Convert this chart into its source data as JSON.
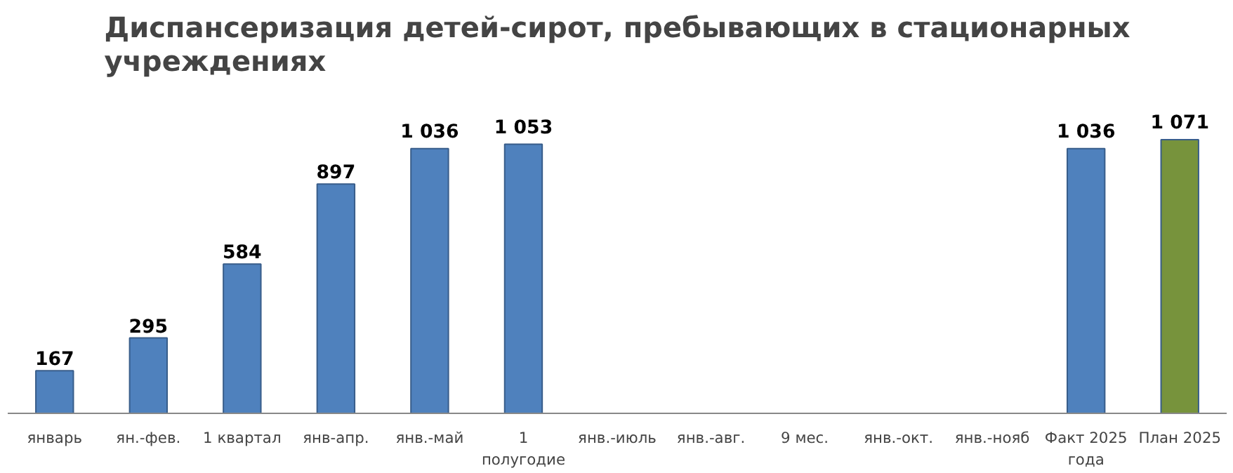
{
  "chart_data": {
    "type": "bar",
    "title": "Диспансеризация детей-сирот, пребывающих в стационарных учреждениях",
    "categories": [
      "январь",
      "ян.-фев.",
      "1 квартал",
      "янв-апр.",
      "янв.-май",
      "1 полугодие",
      "янв.-июль",
      "янв.-авг.",
      "9 мес.",
      "янв.-окт.",
      "янв.-нояб",
      "Факт 2025 года",
      "План 2025"
    ],
    "values": [
      167,
      295,
      584,
      897,
      1036,
      1053,
      null,
      null,
      null,
      null,
      null,
      1036,
      1071
    ],
    "colors": [
      "#4f81bd",
      "#4f81bd",
      "#4f81bd",
      "#4f81bd",
      "#4f81bd",
      "#4f81bd",
      "#4f81bd",
      "#4f81bd",
      "#4f81bd",
      "#4f81bd",
      "#4f81bd",
      "#4f81bd",
      "#77933c"
    ],
    "value_labels": [
      "167",
      "295",
      "584",
      "897",
      "1 036",
      "1 053",
      null,
      null,
      null,
      null,
      null,
      "1 036",
      "1 071"
    ],
    "grid": false
  }
}
